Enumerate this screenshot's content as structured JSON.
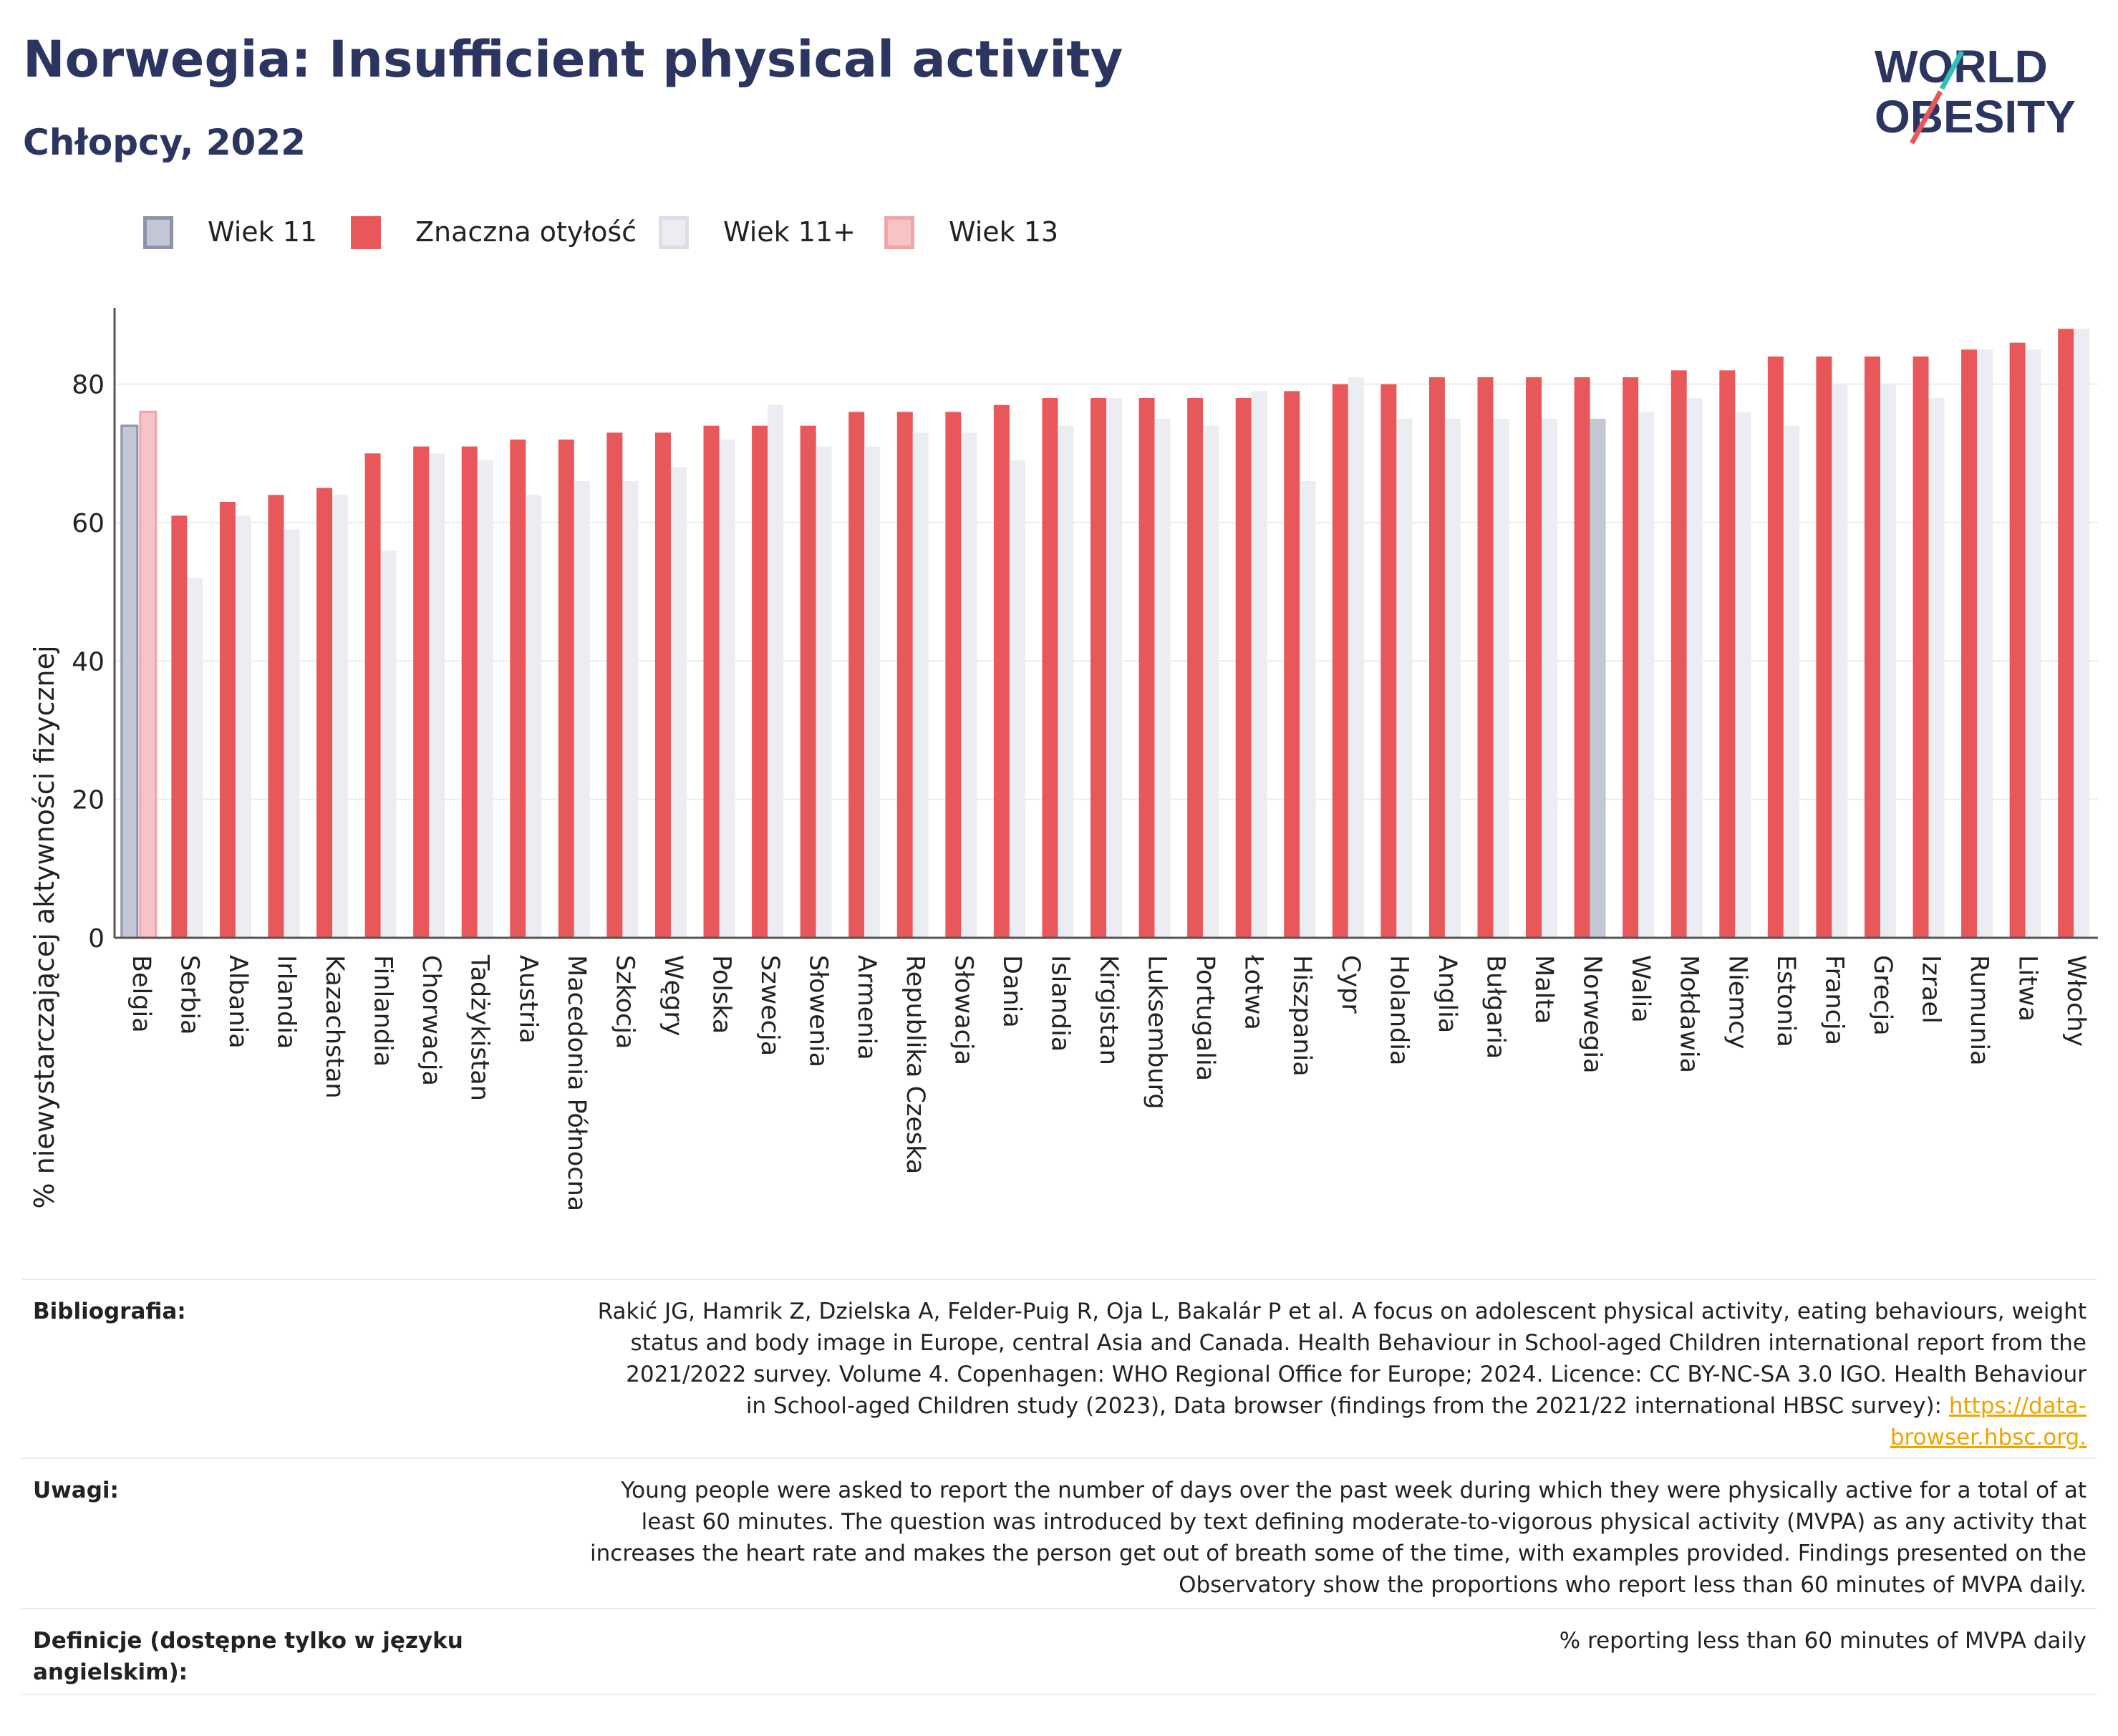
{
  "header": {
    "title": "Norwegia: Insufficient physical activity",
    "subtitle": "Chłopcy, 2022"
  },
  "logo": {
    "line1": "WORLD",
    "line2": "OBESITY"
  },
  "legend": [
    {
      "label": "Wiek 11",
      "fill": "#c3c7d4",
      "stroke": "#8c93aa"
    },
    {
      "label": "Znaczna otyłość",
      "fill": "#e8585a",
      "stroke": "#e8585a"
    },
    {
      "label": "Wiek 11+",
      "fill": "#ecedf2",
      "stroke": "#dcdde5"
    },
    {
      "label": "Wiek 13",
      "fill": "#f7c3c5",
      "stroke": "#f0a6a9"
    }
  ],
  "colors": {
    "age11": "#c3c7d4",
    "age11_stroke": "#8c93aa",
    "main": "#e8585a",
    "age11plus": "#ecedf2",
    "age13": "#f7c3c5",
    "age13_stroke": "#f0a6a9",
    "grid": "#ececec",
    "axis": "#555555"
  },
  "chart_data": {
    "type": "bar",
    "ylabel": "% niewystarczającej aktywności fizycznej",
    "ylim": [
      0,
      90
    ],
    "yticks": [
      0,
      20,
      40,
      60,
      80
    ],
    "grid": true,
    "legend_position": "top-left",
    "categories": [
      "Belgia",
      "Serbia",
      "Albania",
      "Irlandia",
      "Kazachstan",
      "Finlandia",
      "Chorwacja",
      "Tadżykistan",
      "Austria",
      "Macedonia Północna",
      "Szkocja",
      "Węgry",
      "Polska",
      "Szwecja",
      "Słowenia",
      "Armenia",
      "Republika Czeska",
      "Słowacja",
      "Dania",
      "Islandia",
      "Kirgistan",
      "Luksemburg",
      "Portugalia",
      "Łotwa",
      "Hiszpania",
      "Cypr",
      "Holandia",
      "Anglia",
      "Bułgaria",
      "Malta",
      "Norwegia",
      "Walia",
      "Mołdawia",
      "Niemcy",
      "Estonia",
      "Francja",
      "Grecja",
      "Izrael",
      "Rumunia",
      "Litwa",
      "Włochy"
    ],
    "series": [
      {
        "name": "Wiek 11",
        "values": [
          74,
          null,
          null,
          null,
          null,
          null,
          null,
          null,
          null,
          null,
          null,
          null,
          null,
          null,
          null,
          null,
          null,
          null,
          null,
          null,
          null,
          null,
          null,
          null,
          null,
          null,
          null,
          null,
          null,
          null,
          75,
          null,
          null,
          null,
          null,
          null,
          null,
          null,
          null,
          null,
          null
        ]
      },
      {
        "name": "Wiek 13",
        "values": [
          76,
          null,
          null,
          null,
          null,
          null,
          null,
          null,
          null,
          null,
          null,
          null,
          null,
          null,
          null,
          null,
          null,
          null,
          null,
          null,
          null,
          null,
          null,
          null,
          null,
          null,
          null,
          null,
          null,
          null,
          null,
          null,
          null,
          null,
          null,
          null,
          null,
          null,
          null,
          null,
          null
        ]
      },
      {
        "name": "Znaczna otyłość",
        "values": [
          null,
          61,
          63,
          64,
          65,
          70,
          71,
          71,
          72,
          72,
          73,
          73,
          74,
          74,
          74,
          76,
          76,
          76,
          77,
          78,
          78,
          78,
          78,
          78,
          79,
          80,
          80,
          81,
          81,
          81,
          81,
          81,
          82,
          82,
          84,
          84,
          84,
          84,
          85,
          86,
          88
        ]
      },
      {
        "name": "Wiek 11+",
        "values": [
          null,
          52,
          61,
          59,
          64,
          56,
          70,
          69,
          64,
          66,
          66,
          68,
          72,
          77,
          71,
          71,
          73,
          73,
          69,
          74,
          78,
          75,
          74,
          79,
          66,
          81,
          75,
          75,
          75,
          75,
          null,
          76,
          78,
          76,
          74,
          80,
          80,
          78,
          85,
          85,
          88
        ]
      }
    ]
  },
  "meta": {
    "bibliography_label": "Bibliografia:",
    "bibliography_lines": [
      "Rakić JG, Hamrik Z, Dzielska A, Felder-Puig R, Oja L, Bakalár P et al. A focus on adolescent physical activity, eating behaviours, weight",
      "status and body image in Europe, central Asia and Canada. Health Behaviour in School-aged Children international report from the",
      "2021/2022 survey. Volume 4. Copenhagen: WHO Regional Office for Europe; 2024. Licence: CC BY-NC-SA 3.0 IGO. Health Behaviour",
      "in School-aged Children study (2023), Data browser (findings from the 2021/22 international HBSC survey): "
    ],
    "bibliography_link_a": "https://data-",
    "bibliography_link_b": "browser.hbsc.org.",
    "notes_label": "Uwagi:",
    "notes_lines": [
      "Young people were asked to report the number of days over the past week during which they were physically active for a total of at",
      "least 60 minutes. The question was introduced by text defining moderate-to-vigorous physical activity (MVPA) as any activity that",
      "increases the heart rate and makes the person get out of breath some of the time, with examples provided. Findings presented on the",
      "Observatory show the proportions who report less than 60 minutes of MVPA daily."
    ],
    "definition_label_1": "Definicje (dostępne tylko w języku",
    "definition_label_2": "angielskim):",
    "definition_text": "% reporting less than 60 minutes of MVPA daily"
  }
}
